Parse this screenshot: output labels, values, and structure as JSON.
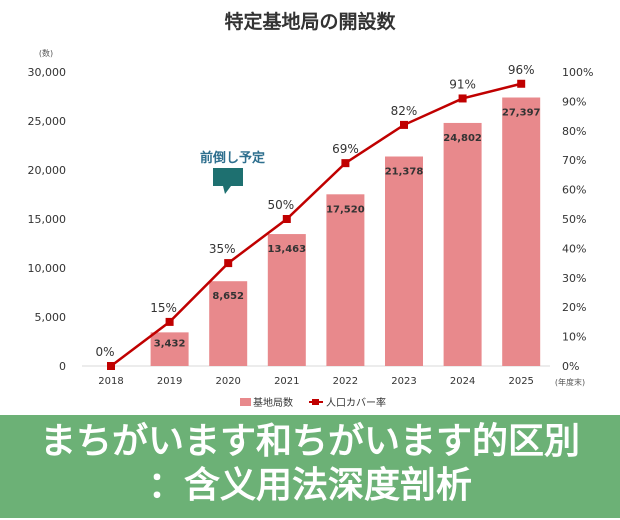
{
  "chart_data": {
    "type": "bar+line",
    "title": "特定基地局の開設数",
    "y_left_unit": "(数)",
    "x_unit": "(年度末)",
    "categories": [
      "2018",
      "2019",
      "2020",
      "2021",
      "2022",
      "2023",
      "2024",
      "2025"
    ],
    "y_left_ticks": [
      "0",
      "5,000",
      "10,000",
      "15,000",
      "20,000",
      "25,000",
      "30,000"
    ],
    "y_left_range": [
      0,
      30000
    ],
    "y_right_ticks": [
      "0%",
      "10%",
      "20%",
      "30%",
      "40%",
      "50%",
      "60%",
      "70%",
      "80%",
      "90%",
      "100%"
    ],
    "y_right_range": [
      0,
      100
    ],
    "series": [
      {
        "name": "基地局数",
        "type": "bar",
        "axis": "left",
        "color": "#e8898c",
        "values": [
          0,
          3432,
          8652,
          13463,
          17520,
          21378,
          24802,
          27397
        ],
        "labels": [
          "",
          "3,432",
          "8,652",
          "13,463",
          "17,520",
          "21,378",
          "24,802",
          "27,397"
        ]
      },
      {
        "name": "人口カバー率",
        "type": "line",
        "axis": "right",
        "color": "#c00000",
        "values": [
          0,
          15,
          35,
          50,
          69,
          82,
          91,
          96
        ],
        "labels": [
          "0%",
          "15%",
          "35%",
          "50%",
          "69%",
          "82%",
          "91%",
          "96%"
        ]
      }
    ],
    "annotation": "前倒し予定",
    "legend_position": "bottom",
    "grid": false
  },
  "banner": {
    "line1": "まちがいます和ちがいます的区別",
    "line2": "：含义用法深度剖析",
    "color": "#4ca058"
  }
}
